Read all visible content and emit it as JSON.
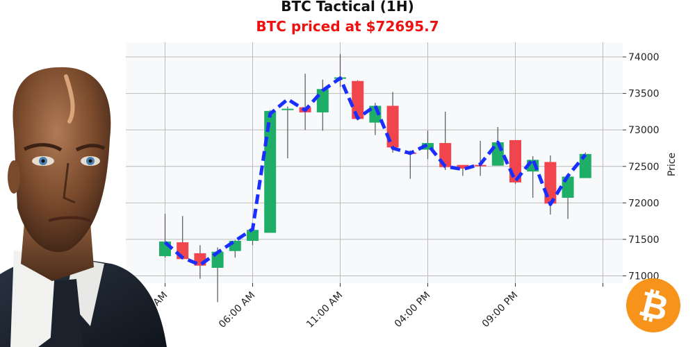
{
  "header": {
    "title": "BTC Tactical (1H)",
    "subtitle": "BTC priced at $72695.7"
  },
  "colors": {
    "subtitle": "#ee1111",
    "up": "#1fae68",
    "down": "#f0454c",
    "trend": "#1a2fff",
    "wick": "#555555",
    "plot_bg": "#f8f9fb",
    "grid": "#bbbbbb"
  },
  "icons": {
    "logo": "bitcoin-logo-icon",
    "person": "businessman-portrait"
  },
  "chart_data": {
    "type": "candlestick",
    "ylabel": "Price",
    "ylim": [
      70900,
      74200
    ],
    "y_ticks": [
      71000,
      71500,
      72000,
      72500,
      73000,
      73500,
      74000
    ],
    "x_ticks": [
      {
        "index": 0,
        "label": "01:00 AM"
      },
      {
        "index": 5,
        "label": "06:00 AM"
      },
      {
        "index": 10,
        "label": "11:00 AM"
      },
      {
        "index": 15,
        "label": "04:00 PM"
      },
      {
        "index": 20,
        "label": "09:00 PM"
      }
    ],
    "x_extra_ticks": [
      25
    ],
    "grid": true,
    "candles": [
      {
        "o": 71270,
        "h": 71850,
        "l": 71250,
        "c": 71470
      },
      {
        "o": 71460,
        "h": 71820,
        "l": 71230,
        "c": 71230
      },
      {
        "o": 71310,
        "h": 71420,
        "l": 70960,
        "c": 71140
      },
      {
        "o": 71110,
        "h": 71390,
        "l": 70640,
        "c": 71330
      },
      {
        "o": 71340,
        "h": 71490,
        "l": 71250,
        "c": 71480
      },
      {
        "o": 71480,
        "h": 71660,
        "l": 71420,
        "c": 71630
      },
      {
        "o": 71590,
        "h": 73270,
        "l": 71590,
        "c": 73260
      },
      {
        "o": 73290,
        "h": 73320,
        "l": 72610,
        "c": 73290
      },
      {
        "o": 73310,
        "h": 73770,
        "l": 73000,
        "c": 73240
      },
      {
        "o": 73240,
        "h": 73690,
        "l": 72990,
        "c": 73560
      },
      {
        "o": 73700,
        "h": 74040,
        "l": 73590,
        "c": 73720
      },
      {
        "o": 73670,
        "h": 73680,
        "l": 73130,
        "c": 73150
      },
      {
        "o": 73100,
        "h": 73370,
        "l": 72930,
        "c": 73330
      },
      {
        "o": 73330,
        "h": 73520,
        "l": 72690,
        "c": 72760
      },
      {
        "o": 72690,
        "h": 72720,
        "l": 72330,
        "c": 72680
      },
      {
        "o": 72730,
        "h": 72990,
        "l": 72600,
        "c": 72820
      },
      {
        "o": 72820,
        "h": 73250,
        "l": 72450,
        "c": 72490
      },
      {
        "o": 72520,
        "h": 72520,
        "l": 72370,
        "c": 72470
      },
      {
        "o": 72520,
        "h": 72850,
        "l": 72370,
        "c": 72510
      },
      {
        "o": 72510,
        "h": 73040,
        "l": 72510,
        "c": 72830
      },
      {
        "o": 72860,
        "h": 72860,
        "l": 72260,
        "c": 72280
      },
      {
        "o": 72430,
        "h": 72640,
        "l": 72070,
        "c": 72590
      },
      {
        "o": 72560,
        "h": 72650,
        "l": 71840,
        "c": 71990
      },
      {
        "o": 72070,
        "h": 72370,
        "l": 71780,
        "c": 72360
      },
      {
        "o": 72340,
        "h": 72690,
        "l": 72340,
        "c": 72670
      }
    ],
    "trend_line": [
      71460,
      71250,
      71150,
      71320,
      71480,
      71640,
      73220,
      73420,
      73270,
      73540,
      73710,
      73160,
      73330,
      72750,
      72680,
      72800,
      72500,
      72460,
      72530,
      72830,
      72300,
      72600,
      71980,
      72370,
      72660
    ]
  }
}
